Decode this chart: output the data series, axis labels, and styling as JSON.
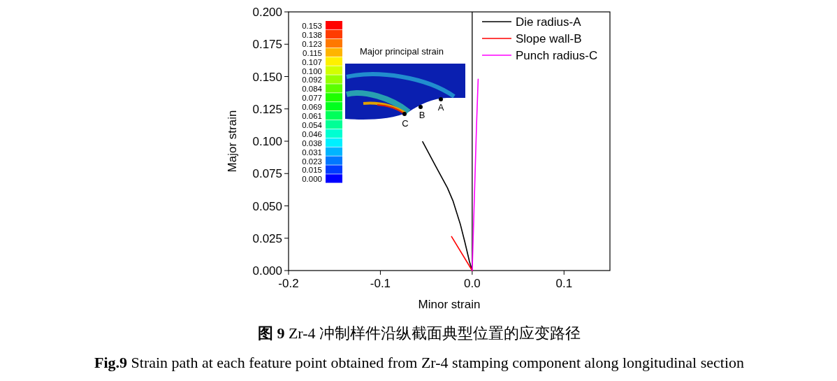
{
  "chart_data": {
    "type": "line",
    "xlabel": "Minor strain",
    "ylabel": "Major strain",
    "xlim": [
      -0.2,
      0.15
    ],
    "xticks": [
      {
        "value": -0.2,
        "label": "-0.2"
      },
      {
        "value": -0.1,
        "label": "-0.1"
      },
      {
        "value": 0.0,
        "label": "0.0"
      },
      {
        "value": 0.1,
        "label": "0.1"
      }
    ],
    "ylim": [
      0,
      0.2
    ],
    "yticks": [
      {
        "value": 0,
        "label": "0.000"
      },
      {
        "value": 0.025,
        "label": "0.025"
      },
      {
        "value": 0.05,
        "label": "0.050"
      },
      {
        "value": 0.075,
        "label": "0.075"
      },
      {
        "value": 0.1,
        "label": "0.100"
      },
      {
        "value": 0.125,
        "label": "0.125"
      },
      {
        "value": 0.15,
        "label": "0.150"
      },
      {
        "value": 0.175,
        "label": "0.175"
      },
      {
        "value": 0.2,
        "label": "0.200"
      }
    ],
    "series": [
      {
        "name": "Die radius-A",
        "color": "#000000",
        "x": [
          -0.054,
          -0.04,
          -0.027,
          -0.021,
          -0.013,
          -0.008,
          -0.003,
          0
        ],
        "values": [
          0.0996,
          0.081,
          0.064,
          0.054,
          0.036,
          0.022,
          0.007,
          0
        ]
      },
      {
        "name": "Slope wall-B",
        "color": "#ff0000",
        "x": [
          -0.0225,
          0
        ],
        "values": [
          0.0263,
          0
        ]
      },
      {
        "name": "Punch radius-C",
        "color": "#ff00ff",
        "x": [
          0,
          0.0047,
          0.0065
        ],
        "values": [
          0,
          0.112,
          0.148
        ]
      }
    ],
    "ref_lines": [
      {
        "axis": "x",
        "value": 0,
        "color": "#000000"
      }
    ],
    "legend": "top right",
    "grid": false,
    "annotations": [
      "Major principal strain",
      "A",
      "B",
      "C",
      "0.153",
      "0.138",
      "0.123",
      "0.115",
      "0.107",
      "0.100",
      "0.092",
      "0.084",
      "0.077",
      "0.069",
      "0.061",
      "0.054",
      "0.046",
      "0.038",
      "0.031",
      "0.023",
      "0.015",
      "0.000",
      "图 9 Zr-4 冲制样件沿纵截面典型位置的应变路径",
      "Fig.9 Strain path at each feature point obtained from Zr-4 stamping component along longitudinal section"
    ]
  }
}
